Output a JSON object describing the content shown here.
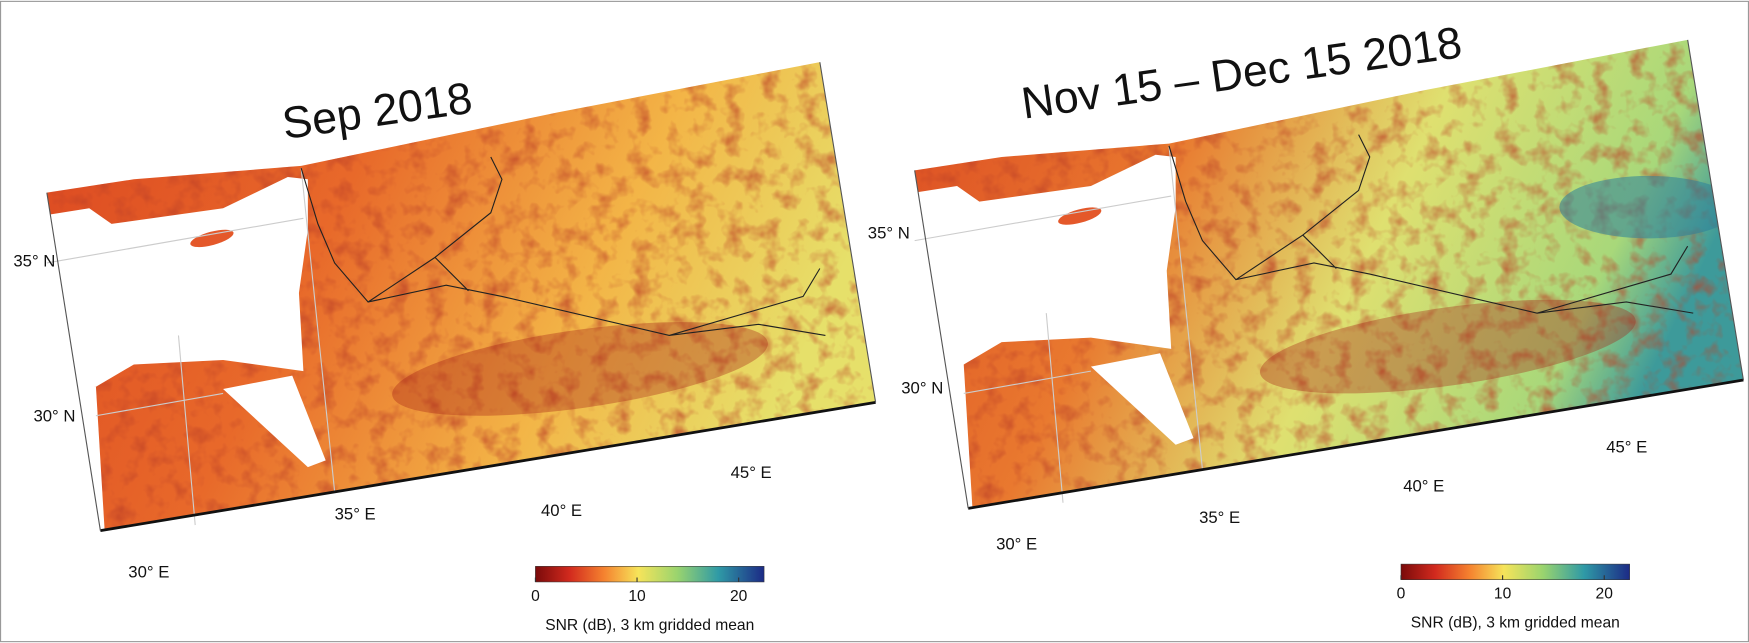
{
  "panels": [
    {
      "title": "Sep 2018",
      "lat_labels": [
        "35° N",
        "30° N"
      ],
      "lon_labels": [
        "30° E",
        "35° E",
        "40° E",
        "45° E"
      ],
      "colorbar": {
        "lim": [
          0,
          22.5
        ],
        "ticks": [
          0,
          10,
          20
        ],
        "label": "SNR (dB), 3 km gridded mean"
      }
    },
    {
      "title": "Nov 15 – Dec 15 2018",
      "lat_labels": [
        "35° N",
        "30° N"
      ],
      "lon_labels": [
        "30° E",
        "35° E",
        "40° E",
        "45° E"
      ],
      "colorbar": {
        "lim": [
          0,
          22.5
        ],
        "ticks": [
          0,
          10,
          20
        ],
        "label": "SNR (dB), 3 km gridded mean"
      }
    }
  ]
}
